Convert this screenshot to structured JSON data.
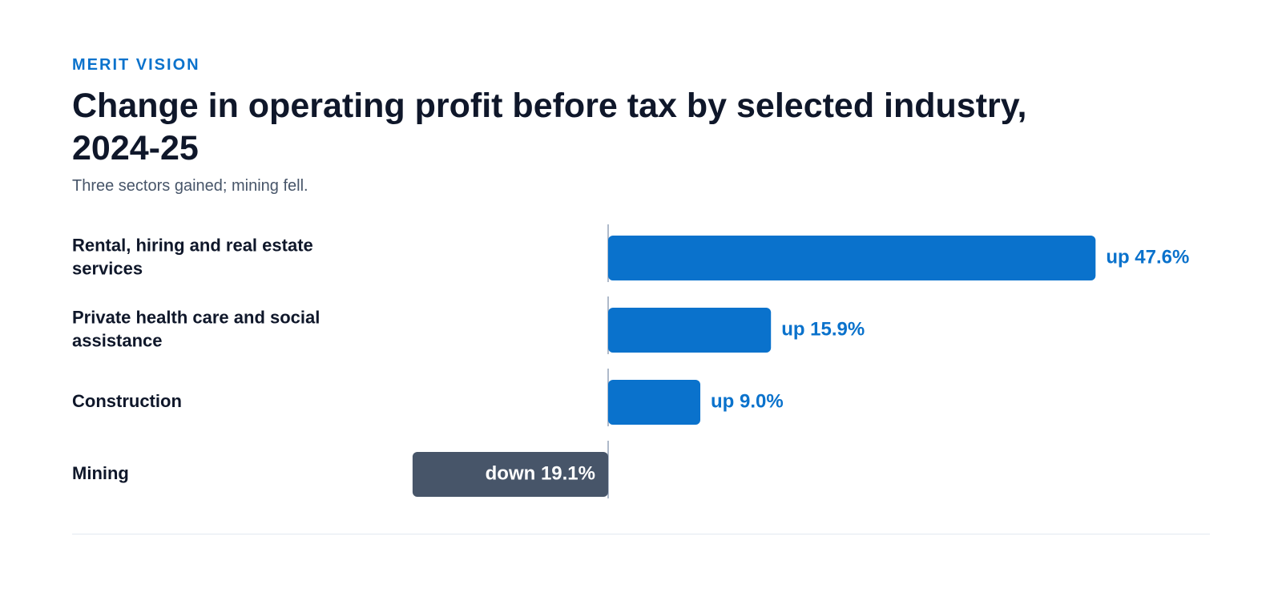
{
  "header": {
    "brand": "MERIT VISION",
    "title": "Change in operating profit before tax by selected industry, 2024-25",
    "subtitle": "Three sectors gained; mining fell."
  },
  "colors": {
    "positive": "#0a72cc",
    "negative": "#475569",
    "label": "#0f172a",
    "axis": "#94a3b8"
  },
  "chart_data": {
    "type": "bar",
    "orientation": "horizontal",
    "unit": "%",
    "categories": [
      "Rental, hiring and real estate services",
      "Private health care and social assistance",
      "Construction",
      "Mining"
    ],
    "values": [
      47.6,
      15.9,
      9.0,
      -19.1
    ],
    "value_labels": [
      "up 47.6%",
      "up 15.9%",
      "up 9.0%",
      "down 19.1%"
    ],
    "xlim": [
      -19.1,
      47.6
    ],
    "grid": false,
    "legend": "none"
  }
}
